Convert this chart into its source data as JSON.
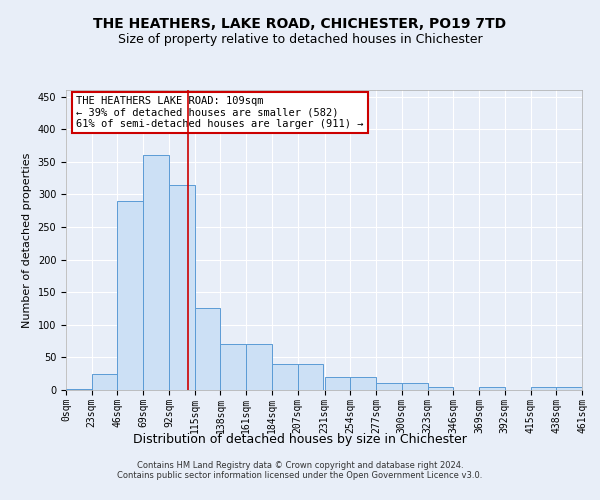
{
  "title": "THE HEATHERS, LAKE ROAD, CHICHESTER, PO19 7TD",
  "subtitle": "Size of property relative to detached houses in Chichester",
  "xlabel": "Distribution of detached houses by size in Chichester",
  "ylabel": "Number of detached properties",
  "bin_edges": [
    0,
    23,
    46,
    69,
    92,
    115,
    138,
    161,
    184,
    207,
    231,
    254,
    277,
    300,
    323,
    346,
    369,
    392,
    415,
    438,
    461
  ],
  "bar_heights": [
    2,
    25,
    290,
    360,
    315,
    125,
    70,
    70,
    40,
    40,
    20,
    20,
    10,
    10,
    5,
    0,
    5,
    0,
    5,
    5
  ],
  "bar_color": "#cce0f5",
  "bar_edge_color": "#5b9bd5",
  "property_size": 109,
  "property_line_color": "#cc0000",
  "ylim": [
    0,
    460
  ],
  "yticks": [
    0,
    50,
    100,
    150,
    200,
    250,
    300,
    350,
    400,
    450
  ],
  "annotation_text": "THE HEATHERS LAKE ROAD: 109sqm\n← 39% of detached houses are smaller (582)\n61% of semi-detached houses are larger (911) →",
  "annotation_box_color": "#ffffff",
  "annotation_box_edge_color": "#cc0000",
  "footer_line1": "Contains HM Land Registry data © Crown copyright and database right 2024.",
  "footer_line2": "Contains public sector information licensed under the Open Government Licence v3.0.",
  "background_color": "#e8eef8",
  "grid_color": "#ffffff",
  "title_fontsize": 10,
  "subtitle_fontsize": 9,
  "tick_fontsize": 7,
  "ylabel_fontsize": 8,
  "xlabel_fontsize": 9,
  "annotation_fontsize": 7.5,
  "footer_fontsize": 6
}
